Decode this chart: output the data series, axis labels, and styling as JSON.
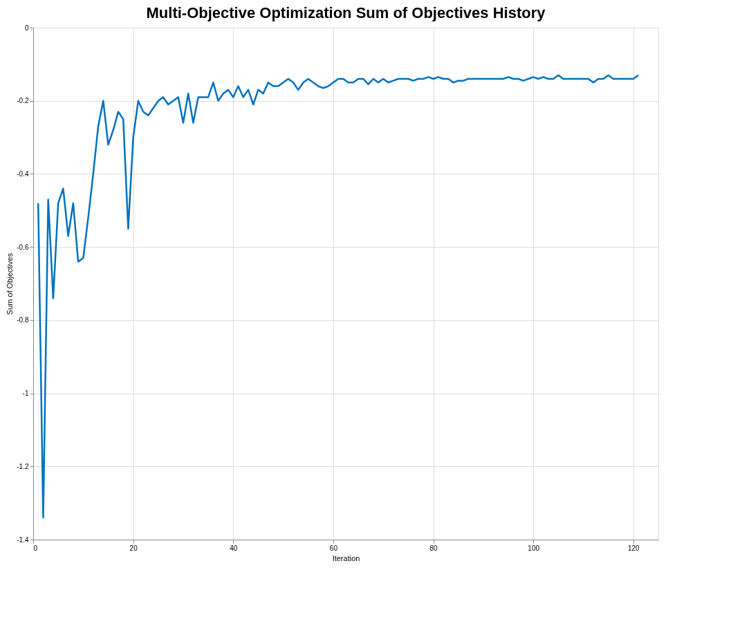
{
  "chart_data": {
    "type": "line",
    "title": "Multi-Objective Optimization Sum of Objectives History",
    "xlabel": "Iteration",
    "ylabel": "Sum of Objectives",
    "x": [
      1,
      2,
      3,
      4,
      5,
      6,
      7,
      8,
      9,
      10,
      11,
      12,
      13,
      14,
      15,
      16,
      17,
      18,
      19,
      20,
      21,
      22,
      23,
      24,
      25,
      26,
      27,
      28,
      29,
      30,
      31,
      32,
      33,
      34,
      35,
      36,
      37,
      38,
      39,
      40,
      41,
      42,
      43,
      44,
      45,
      46,
      47,
      48,
      49,
      50,
      51,
      52,
      53,
      54,
      55,
      56,
      57,
      58,
      59,
      60,
      61,
      62,
      63,
      64,
      65,
      66,
      67,
      68,
      69,
      70,
      71,
      72,
      73,
      74,
      75,
      76,
      77,
      78,
      79,
      80,
      81,
      82,
      83,
      84,
      85,
      86,
      87,
      88,
      89,
      90,
      91,
      92,
      93,
      94,
      95,
      96,
      97,
      98,
      99,
      100,
      101,
      102,
      103,
      104,
      105,
      106,
      107,
      108,
      109,
      110,
      111,
      112,
      113,
      114,
      115,
      116,
      117,
      118,
      119,
      120,
      121
    ],
    "series": [
      {
        "color": "#0072bd",
        "values": [
          -0.48,
          -1.34,
          -0.47,
          -0.74,
          -0.48,
          -0.44,
          -0.57,
          -0.48,
          -0.64,
          -0.63,
          -0.52,
          -0.4,
          -0.27,
          -0.2,
          -0.32,
          -0.28,
          -0.23,
          -0.25,
          -0.55,
          -0.3,
          -0.2,
          -0.23,
          -0.24,
          -0.22,
          -0.2,
          -0.19,
          -0.21,
          -0.2,
          -0.19,
          -0.26,
          -0.18,
          -0.26,
          -0.19,
          -0.19,
          -0.19,
          -0.15,
          -0.2,
          -0.18,
          -0.17,
          -0.19,
          -0.16,
          -0.19,
          -0.17,
          -0.21,
          -0.17,
          -0.18,
          -0.15,
          -0.16,
          -0.16,
          -0.15,
          -0.14,
          -0.15,
          -0.17,
          -0.15,
          -0.14,
          -0.15,
          -0.16,
          -0.165,
          -0.16,
          -0.15,
          -0.14,
          -0.14,
          -0.15,
          -0.15,
          -0.14,
          -0.14,
          -0.155,
          -0.14,
          -0.15,
          -0.14,
          -0.15,
          -0.145,
          -0.14,
          -0.14,
          -0.14,
          -0.145,
          -0.14,
          -0.14,
          -0.135,
          -0.14,
          -0.135,
          -0.14,
          -0.14,
          -0.15,
          -0.145,
          -0.145,
          -0.14,
          -0.14,
          -0.14,
          -0.14,
          -0.14,
          -0.14,
          -0.14,
          -0.14,
          -0.135,
          -0.14,
          -0.14,
          -0.145,
          -0.14,
          -0.135,
          -0.14,
          -0.135,
          -0.14,
          -0.14,
          -0.13,
          -0.14,
          -0.14,
          -0.14,
          -0.14,
          -0.14,
          -0.14,
          -0.15,
          -0.14,
          -0.14,
          -0.13,
          -0.14,
          -0.14,
          -0.14,
          -0.14,
          -0.14,
          -0.13
        ]
      }
    ],
    "xlim": [
      0,
      125
    ],
    "xticks": [
      0,
      20,
      40,
      60,
      80,
      100,
      120
    ],
    "ylim": [
      -1.4,
      0
    ],
    "yticks": [
      -1.4,
      -1.2,
      -1,
      -0.8,
      -0.6,
      -0.4,
      -0.2,
      0
    ],
    "grid": true,
    "legend": false,
    "marker": "none",
    "line_style": "solid"
  }
}
